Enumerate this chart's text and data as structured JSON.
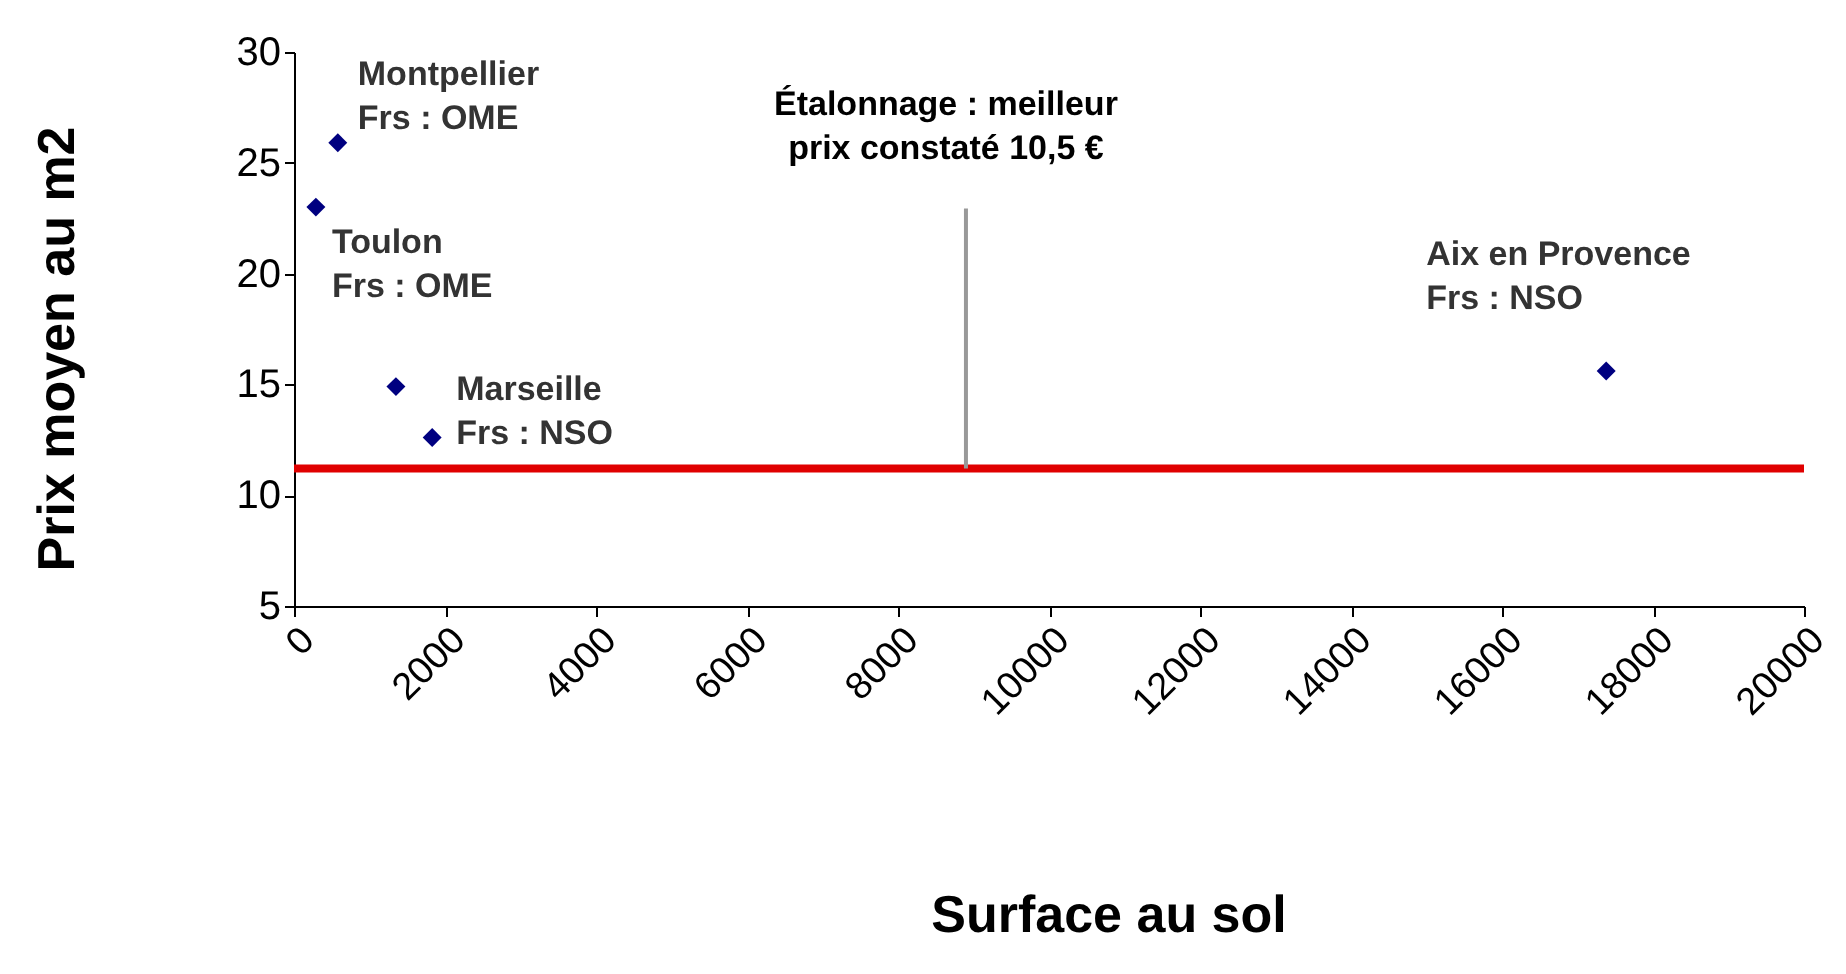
{
  "chart_data": {
    "type": "scatter",
    "xlabel": "Surface au sol",
    "ylabel": "Prix moyen au m2",
    "x": [
      580,
      290,
      1350,
      1830,
      17380
    ],
    "series": [
      {
        "color": "#000080",
        "values": [
          25.9,
          23.0,
          14.9,
          12.6,
          15.6
        ]
      }
    ],
    "marker": "diamond",
    "xlim": [
      0,
      20000
    ],
    "xticks": [
      0,
      2000,
      4000,
      6000,
      8000,
      10000,
      12000,
      14000,
      16000,
      18000,
      20000
    ],
    "ylim": [
      5,
      30
    ],
    "yticks": [
      5,
      10,
      15,
      20,
      25,
      30
    ],
    "grid": false,
    "ref_lines": [
      {
        "axis": "y",
        "value": 11.2,
        "color": "#e00000"
      }
    ],
    "annotations": [
      {
        "text": "Montpellier\nFrs : OME",
        "x": 580,
        "y": 25.9
      },
      {
        "text": "Toulon\nFrs : OME",
        "x": 290,
        "y": 23.0
      },
      {
        "text": "Marseille\nFrs : NSO",
        "x": 1830,
        "y": 12.6
      },
      {
        "text": "Aix en Provence\nFrs : NSO",
        "x": 17380,
        "y": 15.6
      },
      {
        "text": "Étalonnage : meilleur\nprix constaté 10,5 €",
        "x": 8900,
        "y": 11.2
      }
    ]
  }
}
